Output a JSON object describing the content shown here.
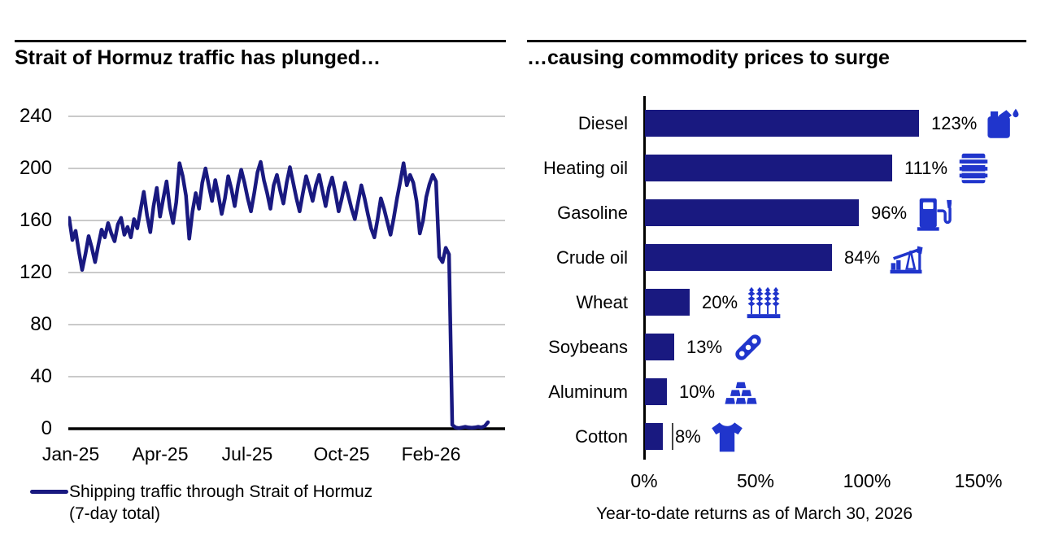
{
  "colors": {
    "navy": "#191980",
    "icon_blue": "#2035cc",
    "gridline": "#ababab",
    "axis": "#000000"
  },
  "left_panel": {
    "title": "Strait of Hormuz traffic has plunged…",
    "y_ticks": [
      "240",
      "200",
      "160",
      "120",
      "80",
      "40",
      "0"
    ],
    "x_ticks": [
      "Jan-25",
      "Apr-25",
      "Jul-25",
      "Oct-25",
      "Feb-26"
    ],
    "legend_line1": "Shipping traffic through Strait of Hormuz",
    "legend_line2": "(7-day total)"
  },
  "right_panel": {
    "title": "…causing commodity prices to surge",
    "x_ticks": [
      "0%",
      "50%",
      "100%",
      "150%"
    ],
    "caption": "Year-to-date returns as of March 30, 2026",
    "rows": [
      {
        "label": "Diesel",
        "value": 123,
        "value_label": "123%",
        "icon": "fuel-can-icon"
      },
      {
        "label": "Heating oil",
        "value": 111,
        "value_label": "111%",
        "icon": "oil-drum-icon"
      },
      {
        "label": "Gasoline",
        "value": 96,
        "value_label": "96%",
        "icon": "fuel-pump-icon"
      },
      {
        "label": "Crude oil",
        "value": 84,
        "value_label": "84%",
        "icon": "pumpjack-icon"
      },
      {
        "label": "Wheat",
        "value": 20,
        "value_label": "20%",
        "icon": "wheat-icon"
      },
      {
        "label": "Soybeans",
        "value": 13,
        "value_label": "13%",
        "icon": "soybean-pod-icon"
      },
      {
        "label": "Aluminum",
        "value": 10,
        "value_label": "10%",
        "icon": "ingot-stack-icon"
      },
      {
        "label": "Cotton",
        "value": 8,
        "value_label": "8%",
        "icon": "tshirt-icon"
      }
    ]
  },
  "chart_data": [
    {
      "type": "line",
      "title": "Strait of Hormuz traffic has plunged…",
      "x_tick_labels": [
        "Jan-25",
        "Apr-25",
        "Jul-25",
        "Oct-25",
        "Feb-26"
      ],
      "x_range_note": "daily series Jan-2025 through late-Mar-2026, evenly spaced samples",
      "ylim": [
        0,
        240
      ],
      "y_ticks": [
        0,
        40,
        80,
        120,
        160,
        200,
        240
      ],
      "grid": "horizontal",
      "legend_position": "bottom-left",
      "series": [
        {
          "name": "Shipping traffic through Strait of Hormuz (7-day total)",
          "values": [
            162,
            145,
            152,
            136,
            122,
            134,
            148,
            139,
            128,
            141,
            153,
            147,
            158,
            150,
            144,
            157,
            162,
            149,
            155,
            147,
            161,
            154,
            168,
            182,
            164,
            151,
            171,
            185,
            163,
            177,
            190,
            170,
            158,
            174,
            204,
            194,
            179,
            146,
            167,
            181,
            169,
            189,
            200,
            187,
            175,
            191,
            179,
            165,
            177,
            194,
            184,
            171,
            187,
            199,
            189,
            177,
            167,
            181,
            197,
            205,
            191,
            181,
            169,
            187,
            195,
            183,
            173,
            189,
            201,
            189,
            177,
            167,
            181,
            194,
            185,
            175,
            187,
            195,
            183,
            171,
            185,
            193,
            181,
            167,
            177,
            189,
            179,
            169,
            161,
            174,
            187,
            177,
            165,
            154,
            147,
            161,
            177,
            169,
            159,
            149,
            162,
            177,
            190,
            204,
            187,
            195,
            189,
            175,
            150,
            160,
            178,
            188,
            195,
            190,
            132,
            128,
            139,
            134,
            3,
            1,
            0.5,
            1,
            1.5,
            1,
            0.8,
            1,
            1.5,
            1,
            2,
            5
          ]
        }
      ]
    },
    {
      "type": "bar",
      "orientation": "horizontal",
      "title": "…causing commodity prices to surge",
      "categories": [
        "Diesel",
        "Heating oil",
        "Gasoline",
        "Crude oil",
        "Wheat",
        "Soybeans",
        "Aluminum",
        "Cotton"
      ],
      "values": [
        123,
        111,
        96,
        84,
        20,
        13,
        10,
        8
      ],
      "xlabel": "Year-to-date returns as of March 30, 2026",
      "xlim": [
        0,
        150
      ],
      "x_ticks": [
        0,
        50,
        100,
        150
      ],
      "grid": "off"
    }
  ]
}
